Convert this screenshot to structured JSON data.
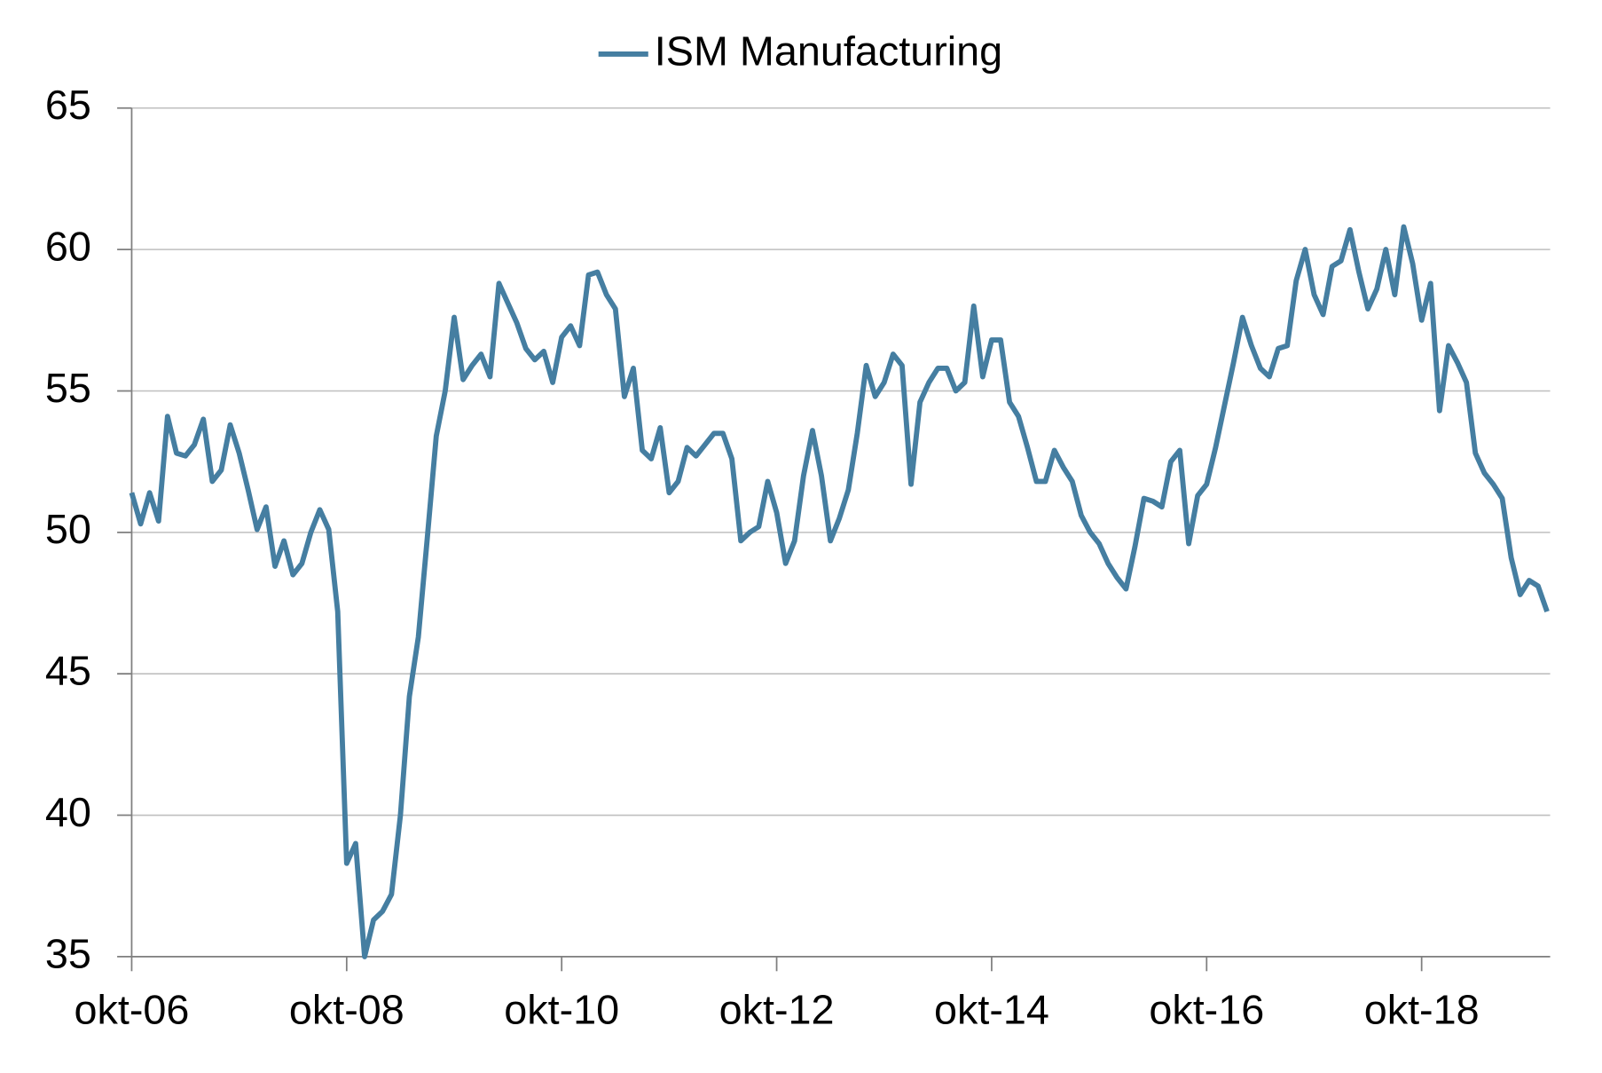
{
  "chart_data": {
    "type": "line",
    "categories": [
      "okt-06",
      null,
      null,
      null,
      null,
      null,
      null,
      null,
      null,
      null,
      null,
      null,
      null,
      null,
      null,
      null,
      null,
      null,
      null,
      null,
      null,
      null,
      null,
      null,
      "okt-08",
      null,
      null,
      null,
      null,
      null,
      null,
      null,
      null,
      null,
      null,
      null,
      null,
      null,
      null,
      null,
      null,
      null,
      null,
      null,
      null,
      null,
      null,
      null,
      "okt-10",
      null,
      null,
      null,
      null,
      null,
      null,
      null,
      null,
      null,
      null,
      null,
      null,
      null,
      null,
      null,
      null,
      null,
      null,
      null,
      null,
      null,
      null,
      null,
      "okt-12",
      null,
      null,
      null,
      null,
      null,
      null,
      null,
      null,
      null,
      null,
      null,
      null,
      null,
      null,
      null,
      null,
      null,
      null,
      null,
      null,
      null,
      null,
      null,
      "okt-14",
      null,
      null,
      null,
      null,
      null,
      null,
      null,
      null,
      null,
      null,
      null,
      null,
      null,
      null,
      null,
      null,
      null,
      null,
      null,
      null,
      null,
      null,
      null,
      "okt-16",
      null,
      null,
      null,
      null,
      null,
      null,
      null,
      null,
      null,
      null,
      null,
      null,
      null,
      null,
      null,
      null,
      null,
      null,
      null,
      null,
      null,
      null,
      null,
      "okt-18",
      null,
      null,
      null,
      null,
      null,
      null,
      null,
      null,
      null,
      null,
      null,
      null,
      null,
      null
    ],
    "series": [
      {
        "name": "ISM Manufacturing",
        "color": "#457ea1",
        "values": [
          51.4,
          50.3,
          51.4,
          50.4,
          54.1,
          52.8,
          52.7,
          53.1,
          54.0,
          51.8,
          52.2,
          53.8,
          52.8,
          51.5,
          50.1,
          50.9,
          48.8,
          49.7,
          48.5,
          48.9,
          50.0,
          50.8,
          50.1,
          47.2,
          38.3,
          39.0,
          35.0,
          36.3,
          36.6,
          37.2,
          40.0,
          44.2,
          46.3,
          49.8,
          53.4,
          55.0,
          57.6,
          55.4,
          55.9,
          56.3,
          55.5,
          58.8,
          58.1,
          57.4,
          56.5,
          56.1,
          56.4,
          55.3,
          56.9,
          57.3,
          56.6,
          59.1,
          59.2,
          58.4,
          57.9,
          54.8,
          55.8,
          52.9,
          52.6,
          53.7,
          51.4,
          51.8,
          53.0,
          52.7,
          53.1,
          53.5,
          53.5,
          52.6,
          49.7,
          50.0,
          50.2,
          51.8,
          50.7,
          48.9,
          49.7,
          52.0,
          53.6,
          52.0,
          49.7,
          50.5,
          51.5,
          53.5,
          55.9,
          54.8,
          55.3,
          56.3,
          55.9,
          51.7,
          54.6,
          55.3,
          55.8,
          55.8,
          55.0,
          55.3,
          58.0,
          55.5,
          56.8,
          56.8,
          54.6,
          54.1,
          53.0,
          51.8,
          51.8,
          52.9,
          52.3,
          51.8,
          50.6,
          50.0,
          49.6,
          48.9,
          48.4,
          48.0,
          49.5,
          51.2,
          51.1,
          50.9,
          52.5,
          52.9,
          49.6,
          51.3,
          51.7,
          53.0,
          54.5,
          56.0,
          57.6,
          56.6,
          55.8,
          55.5,
          56.5,
          56.6,
          58.9,
          60.0,
          58.4,
          57.7,
          59.4,
          59.6,
          60.7,
          59.2,
          57.9,
          58.6,
          60.0,
          58.4,
          60.8,
          59.5,
          57.5,
          58.8,
          54.3,
          56.6,
          56.0,
          55.3,
          52.8,
          52.1,
          51.7,
          51.2,
          49.1,
          47.8,
          48.3,
          48.1,
          47.2
        ]
      }
    ],
    "ylim": [
      35,
      65
    ],
    "yticks": [
      35,
      40,
      45,
      50,
      55,
      60,
      65
    ],
    "grid": true,
    "legend": "top"
  }
}
